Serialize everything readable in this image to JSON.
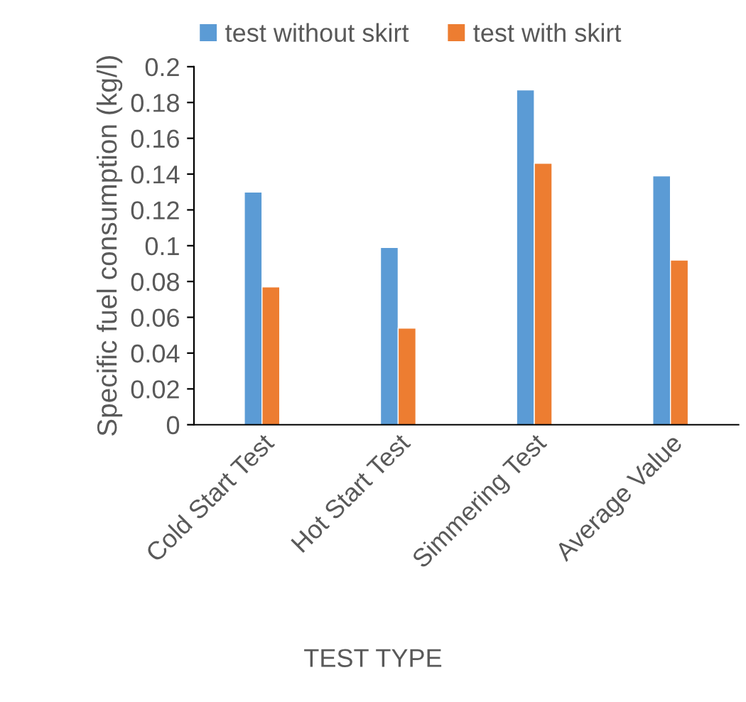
{
  "chart_data": {
    "type": "bar",
    "xlabel": "TEST TYPE",
    "ylabel": "Specific fuel consumption (kg/l)",
    "categories": [
      "Cold Start Test",
      "Hot Start Test",
      "Simmering Test",
      "Average Value"
    ],
    "series": [
      {
        "name": "test without skirt",
        "color": "#5b9bd5",
        "values": [
          0.13,
          0.099,
          0.187,
          0.139
        ]
      },
      {
        "name": "test with skirt",
        "color": "#ed7d31",
        "values": [
          0.077,
          0.054,
          0.146,
          0.092
        ]
      }
    ],
    "ylim": [
      0,
      0.2
    ],
    "yticks": [
      0,
      0.02,
      0.04,
      0.06,
      0.08,
      0.1,
      0.12,
      0.14,
      0.16,
      0.18,
      0.2
    ],
    "grid": false,
    "legend": "top"
  }
}
